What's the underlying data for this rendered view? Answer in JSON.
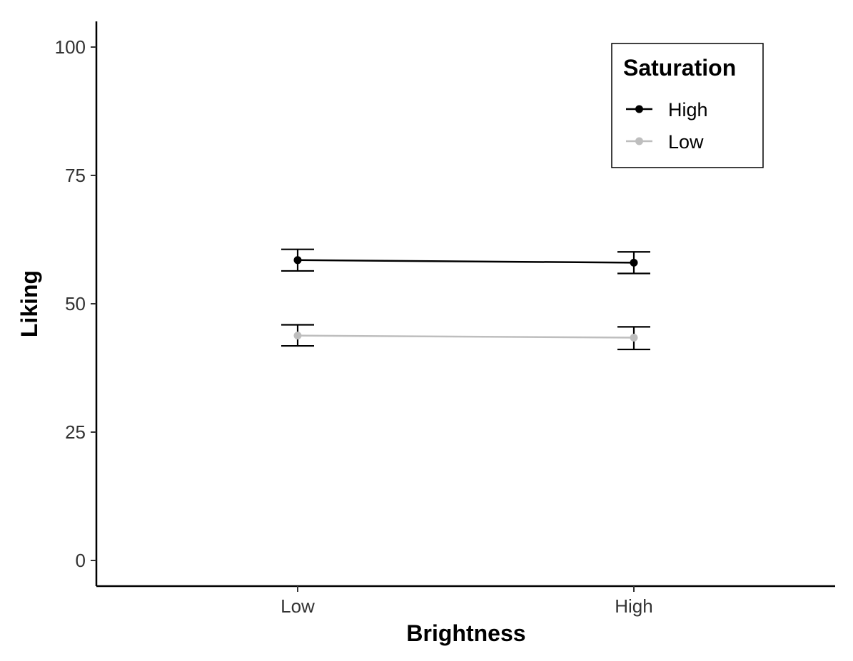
{
  "chart_data": {
    "type": "line",
    "xlabel": "Brightness",
    "ylabel": "Liking",
    "categories": [
      "Low",
      "High"
    ],
    "ylim": [
      -5,
      105
    ],
    "yticks": [
      0,
      25,
      50,
      75,
      100
    ],
    "yticks_text": [
      "0",
      "25",
      "50",
      "75",
      "100"
    ],
    "grid": false,
    "legend": {
      "title": "Saturation",
      "position": "top-right"
    },
    "series": [
      {
        "name": "High",
        "color": "#000000",
        "values": [
          58.5,
          58.0
        ],
        "error_upper": [
          60.6,
          60.1
        ],
        "error_lower": [
          56.4,
          55.9
        ]
      },
      {
        "name": "Low",
        "color": "#bebebe",
        "values": [
          43.8,
          43.4
        ],
        "error_upper": [
          45.9,
          45.5
        ],
        "error_lower": [
          41.8,
          41.1
        ]
      }
    ]
  }
}
